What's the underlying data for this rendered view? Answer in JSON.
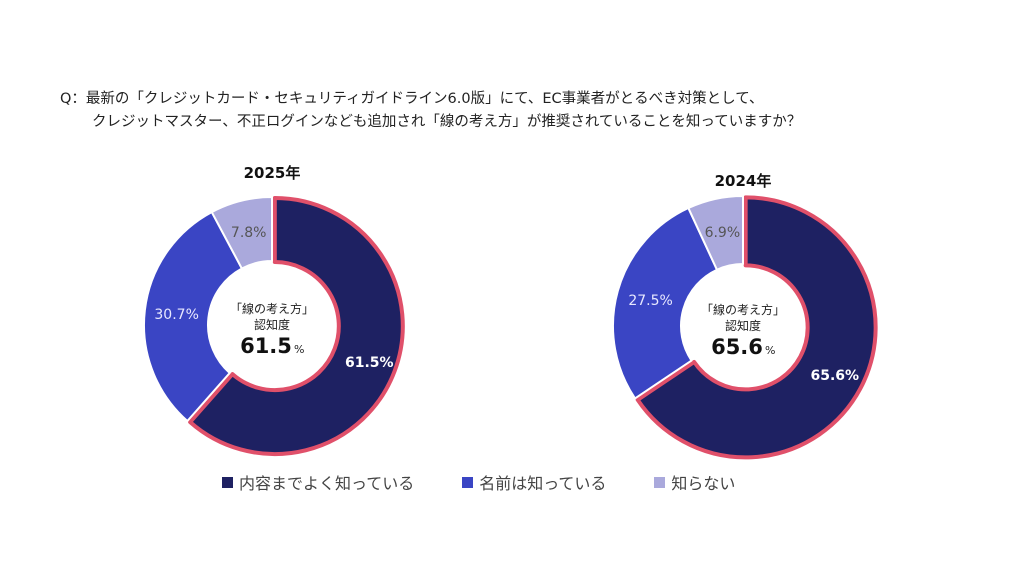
{
  "question": {
    "line1": "Q：最新の「クレジットカード・セキュリティガイドライン6.0版」にて、EC事業者がとるべき対策として、",
    "line2": "クレジットマスター、不正ログインなども追加され「線の考え方」が推奨されていることを知っていますか？"
  },
  "colors": {
    "know_well": "#1e2162",
    "know_name": "#3a45c4",
    "dont_know": "#aaa9dc",
    "highlight": "#e0506a"
  },
  "chart_data": [
    {
      "type": "pie",
      "title": "2025年",
      "center_label_line1": "「線の考え方」",
      "center_label_line2": "認知度",
      "center_value": "61.5",
      "center_unit": "%",
      "categories": [
        "内容までよく知っている",
        "名前は知っている",
        "知らない"
      ],
      "values": [
        61.5,
        30.7,
        7.8
      ],
      "labels": [
        "61.5%",
        "30.7%",
        "7.8%"
      ]
    },
    {
      "type": "pie",
      "title": "2024年",
      "center_label_line1": "「線の考え方」",
      "center_label_line2": "認知度",
      "center_value": "65.6",
      "center_unit": "%",
      "categories": [
        "内容までよく知っている",
        "名前は知っている",
        "知らない"
      ],
      "values": [
        65.6,
        27.5,
        6.9
      ],
      "labels": [
        "65.6%",
        "27.5%",
        "6.9%"
      ]
    }
  ],
  "legend": [
    "内容までよく知っている",
    "名前は知っている",
    "知らない"
  ]
}
